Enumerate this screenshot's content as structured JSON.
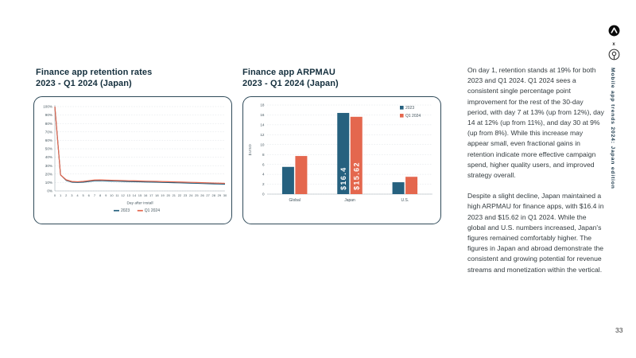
{
  "page": {
    "number": "33",
    "vertical_title": "Mobile app trends 2024: Japan edition"
  },
  "brand": {
    "separator_label": "x"
  },
  "charts": {
    "retention": {
      "title_line1": "Finance app retention rates",
      "title_line2": "2023 - Q1 2024 (Japan)"
    },
    "arpmau": {
      "title_line1": "Finance app ARPMAU",
      "title_line2": "2023 - Q1 2024 (Japan)"
    }
  },
  "copy": {
    "paragraph1": "On day 1, retention stands at 19% for both 2023 and Q1 2024. Q1 2024 sees a consistent single percentage point improvement for the rest of the 30-day period, with day 7 at 13% (up from 12%), day 14 at 12% (up from 11%), and day 30 at 9% (up from 8%). While this increase may appear small, even fractional gains in retention indicate more effective campaign spend, higher quality users, and improved strategy overall.",
    "paragraph2": "Despite a slight decline, Japan maintained a high ARPMAU for finance apps, with $16.4 in 2023 and $15.62 in Q1 2024. While the global and U.S. numbers increased, Japan's figures remained comfortably higher. The figures in Japan and abroad demonstrate the consistent and growing potential for revenue streams and monetization within the vertical."
  },
  "colors": {
    "series_2023": "#26617f",
    "series_q1_2024": "#e4674e",
    "card_border": "#2f4a59",
    "grid": "#dde2e6",
    "axis_text": "#45565f"
  },
  "chart_data": [
    {
      "type": "line",
      "title": "Finance app retention rates 2023 - Q1 2024 (Japan)",
      "xlabel": "Day after install",
      "ylabel": "",
      "ylim": [
        0,
        100
      ],
      "ytick_step": 10,
      "ytick_suffix": "%",
      "grid": true,
      "legend_position": "bottom",
      "x": [
        0,
        1,
        2,
        3,
        4,
        5,
        6,
        7,
        8,
        9,
        10,
        11,
        12,
        13,
        14,
        15,
        16,
        17,
        18,
        19,
        20,
        21,
        22,
        23,
        24,
        25,
        26,
        27,
        28,
        29,
        30
      ],
      "series": [
        {
          "name": "2023",
          "color": "#26617f",
          "values": [
            100,
            19,
            12.5,
            10.4,
            10.1,
            10.4,
            11.2,
            12,
            12.1,
            11.9,
            11.7,
            11.5,
            11.3,
            11.1,
            11,
            10.8,
            10.6,
            10.5,
            10.3,
            10.1,
            10,
            9.8,
            9.6,
            9.4,
            9.2,
            9,
            8.8,
            8.6,
            8.4,
            8.2,
            8
          ]
        },
        {
          "name": "Q1 2024",
          "color": "#e4674e",
          "values": [
            100,
            19,
            13.2,
            11.2,
            10.9,
            11.3,
            12.2,
            13,
            13.1,
            12.9,
            12.7,
            12.5,
            12.3,
            12.1,
            12,
            11.8,
            11.6,
            11.5,
            11.3,
            11.1,
            11,
            10.8,
            10.6,
            10.4,
            10.2,
            10,
            9.8,
            9.6,
            9.4,
            9.2,
            9
          ]
        }
      ]
    },
    {
      "type": "bar",
      "title": "Finance app ARPMAU 2023 - Q1 2024 (Japan)",
      "xlabel": "",
      "ylabel": "$USD",
      "ylim": [
        0,
        18
      ],
      "ytick_step": 2,
      "grid": true,
      "legend_position": "top-right",
      "categories": [
        "Global",
        "Japan",
        "U.S."
      ],
      "series": [
        {
          "name": "2023",
          "color": "#26617f",
          "values": [
            5.5,
            16.4,
            2.4
          ],
          "bar_labels": [
            "",
            "$16.4",
            ""
          ]
        },
        {
          "name": "Q1 2024",
          "color": "#e4674e",
          "values": [
            7.7,
            15.62,
            3.5
          ],
          "bar_labels": [
            "",
            "$15.62",
            ""
          ]
        }
      ]
    }
  ]
}
